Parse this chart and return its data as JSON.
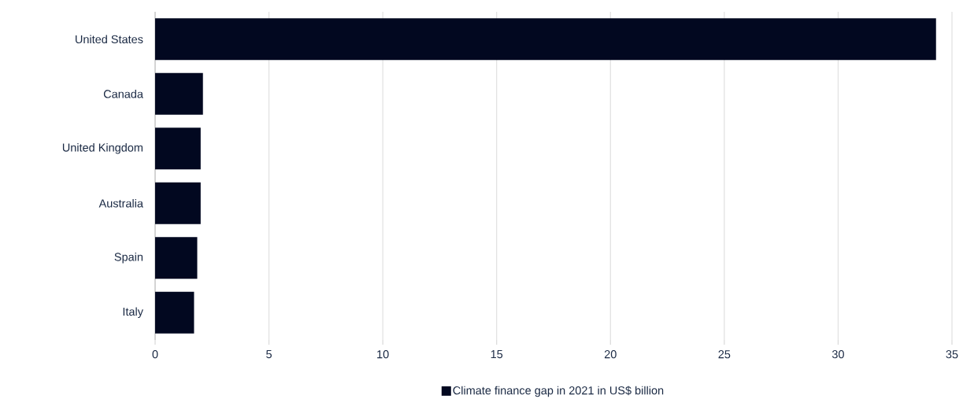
{
  "chart_data": {
    "type": "bar",
    "orientation": "horizontal",
    "categories": [
      "United States",
      "Canada",
      "United Kingdom",
      "Australia",
      "Spain",
      "Italy"
    ],
    "series": [
      {
        "name": "Climate finance gap in 2021 in US$ billion",
        "color": "#020820",
        "values": [
          34.3,
          2.1,
          2.0,
          2.0,
          1.85,
          1.71
        ]
      }
    ],
    "xlim": [
      0,
      35
    ],
    "xticks": [
      0,
      5,
      10,
      15,
      20,
      25,
      30,
      35
    ],
    "grid": "x",
    "legend": "bottom"
  }
}
